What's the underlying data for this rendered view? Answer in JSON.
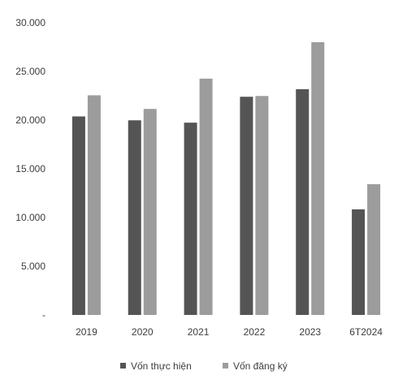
{
  "chart_data": {
    "type": "bar",
    "title": "",
    "xlabel": "",
    "ylabel": "",
    "categories": [
      "2019",
      "2020",
      "2021",
      "2022",
      "2023",
      "6T2024"
    ],
    "series": [
      {
        "name": "Vốn thực hiện",
        "values": [
          20380,
          19980,
          19740,
          22400,
          23180,
          10840
        ],
        "color": "#545454"
      },
      {
        "name": "Vốn đăng ký",
        "values": [
          22550,
          21150,
          24260,
          22480,
          28000,
          13430
        ],
        "color": "#9c9c9c"
      }
    ],
    "ylim": [
      0,
      30000
    ],
    "yticks": [
      "-",
      "5.000",
      "10.000",
      "15.000",
      "20.000",
      "25.000",
      "30.000"
    ],
    "grid": false,
    "legend_position": "bottom"
  }
}
